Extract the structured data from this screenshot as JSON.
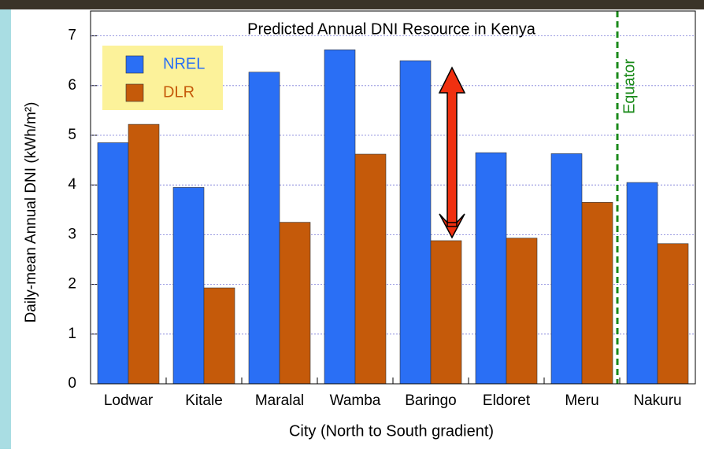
{
  "chart_data": {
    "type": "bar",
    "title": "Predicted Annual DNI Resource in Kenya",
    "x_label": "City (North to South gradient)",
    "y_label": "Daily-mean Annual DNI (kWh/m²)",
    "categories": [
      "Lodwar",
      "Kitale",
      "Maralal",
      "Wamba",
      "Baringo",
      "Eldoret",
      "Meru",
      "Nakuru"
    ],
    "series": [
      {
        "name": "NREL",
        "color": "#2a6ff5",
        "values": [
          4.85,
          3.95,
          6.27,
          6.72,
          6.5,
          4.65,
          4.63,
          4.05
        ]
      },
      {
        "name": "DLR",
        "color": "#c55a0a",
        "values": [
          5.22,
          1.93,
          3.25,
          4.62,
          2.88,
          2.93,
          3.65,
          2.82
        ]
      }
    ],
    "ylim": [
      0,
      7.5
    ],
    "yticks": [
      0,
      1,
      2,
      3,
      4,
      5,
      6,
      7
    ],
    "grid": true,
    "annotation": "Equator",
    "legend": "upper left"
  }
}
